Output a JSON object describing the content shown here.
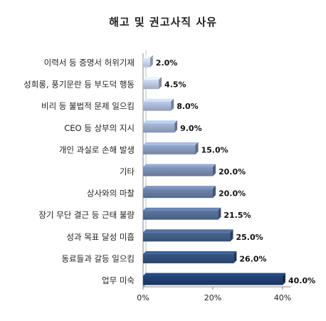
{
  "chart_data": {
    "type": "bar",
    "orientation": "horizontal",
    "title": "해고 및 권고사직 사유",
    "categories": [
      "이력서 등 증명서 허위기재",
      "성희롱, 풍기문란 등 부도덕 행동",
      "비리 등 불법적 문제 일으킴",
      "CEO 등 상부의 지시",
      "개인 과실로 손해 발생",
      "기타",
      "상사와의 마찰",
      "장기 무단 결근 등 근태 불량",
      "성과 목표 달성 미흡",
      "동료들과 갈등 일으킴",
      "업무 미숙"
    ],
    "values": [
      2.0,
      4.5,
      8.0,
      9.0,
      15.0,
      20.0,
      20.0,
      21.5,
      25.0,
      26.0,
      40.0
    ],
    "value_labels": [
      "2.0%",
      "4.5%",
      "8.0%",
      "9.0%",
      "15.0%",
      "20.0%",
      "20.0%",
      "21.5%",
      "25.0%",
      "26.0%",
      "40.0%"
    ],
    "xlim": [
      0,
      40
    ],
    "x_ticks": [
      "0%",
      "20%",
      "40%"
    ],
    "grid": false,
    "legend": "none",
    "colors": {
      "light": "#c9d3ea",
      "dark": "#1f3d6b",
      "axis": "#888888"
    }
  }
}
